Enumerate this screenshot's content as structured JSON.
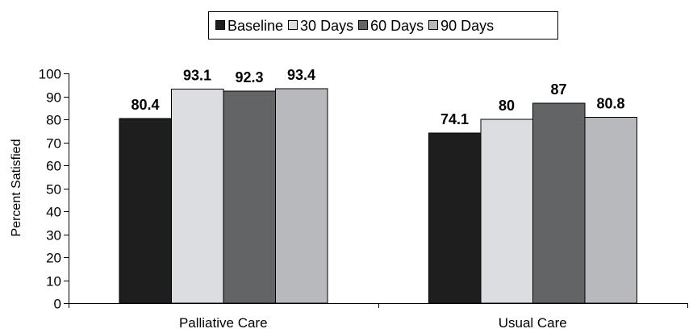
{
  "chart_data": {
    "type": "bar",
    "title": "",
    "xlabel": "",
    "ylabel": "Percent Satisfied",
    "ylim": [
      0,
      100
    ],
    "yticks": [
      0,
      10,
      20,
      30,
      40,
      50,
      60,
      70,
      80,
      90,
      100
    ],
    "categories": [
      "Palliative Care",
      "Usual Care"
    ],
    "series": [
      {
        "name": "Baseline",
        "color": "#1e1e1e",
        "values": [
          80.4,
          74.1
        ]
      },
      {
        "name": "30 Days",
        "color": "#dcdde0",
        "values": [
          93.1,
          80
        ]
      },
      {
        "name": "60 Days",
        "color": "#636466",
        "values": [
          92.3,
          87
        ]
      },
      {
        "name": "90 Days",
        "color": "#b8b9bc",
        "values": [
          93.4,
          80.8
        ]
      }
    ],
    "data_labels": [
      [
        "80.4",
        "74.1"
      ],
      [
        "93.1",
        "80"
      ],
      [
        "92.3",
        "87"
      ],
      [
        "93.4",
        "80.8"
      ]
    ],
    "legend_position": "top-center",
    "grid": false
  }
}
